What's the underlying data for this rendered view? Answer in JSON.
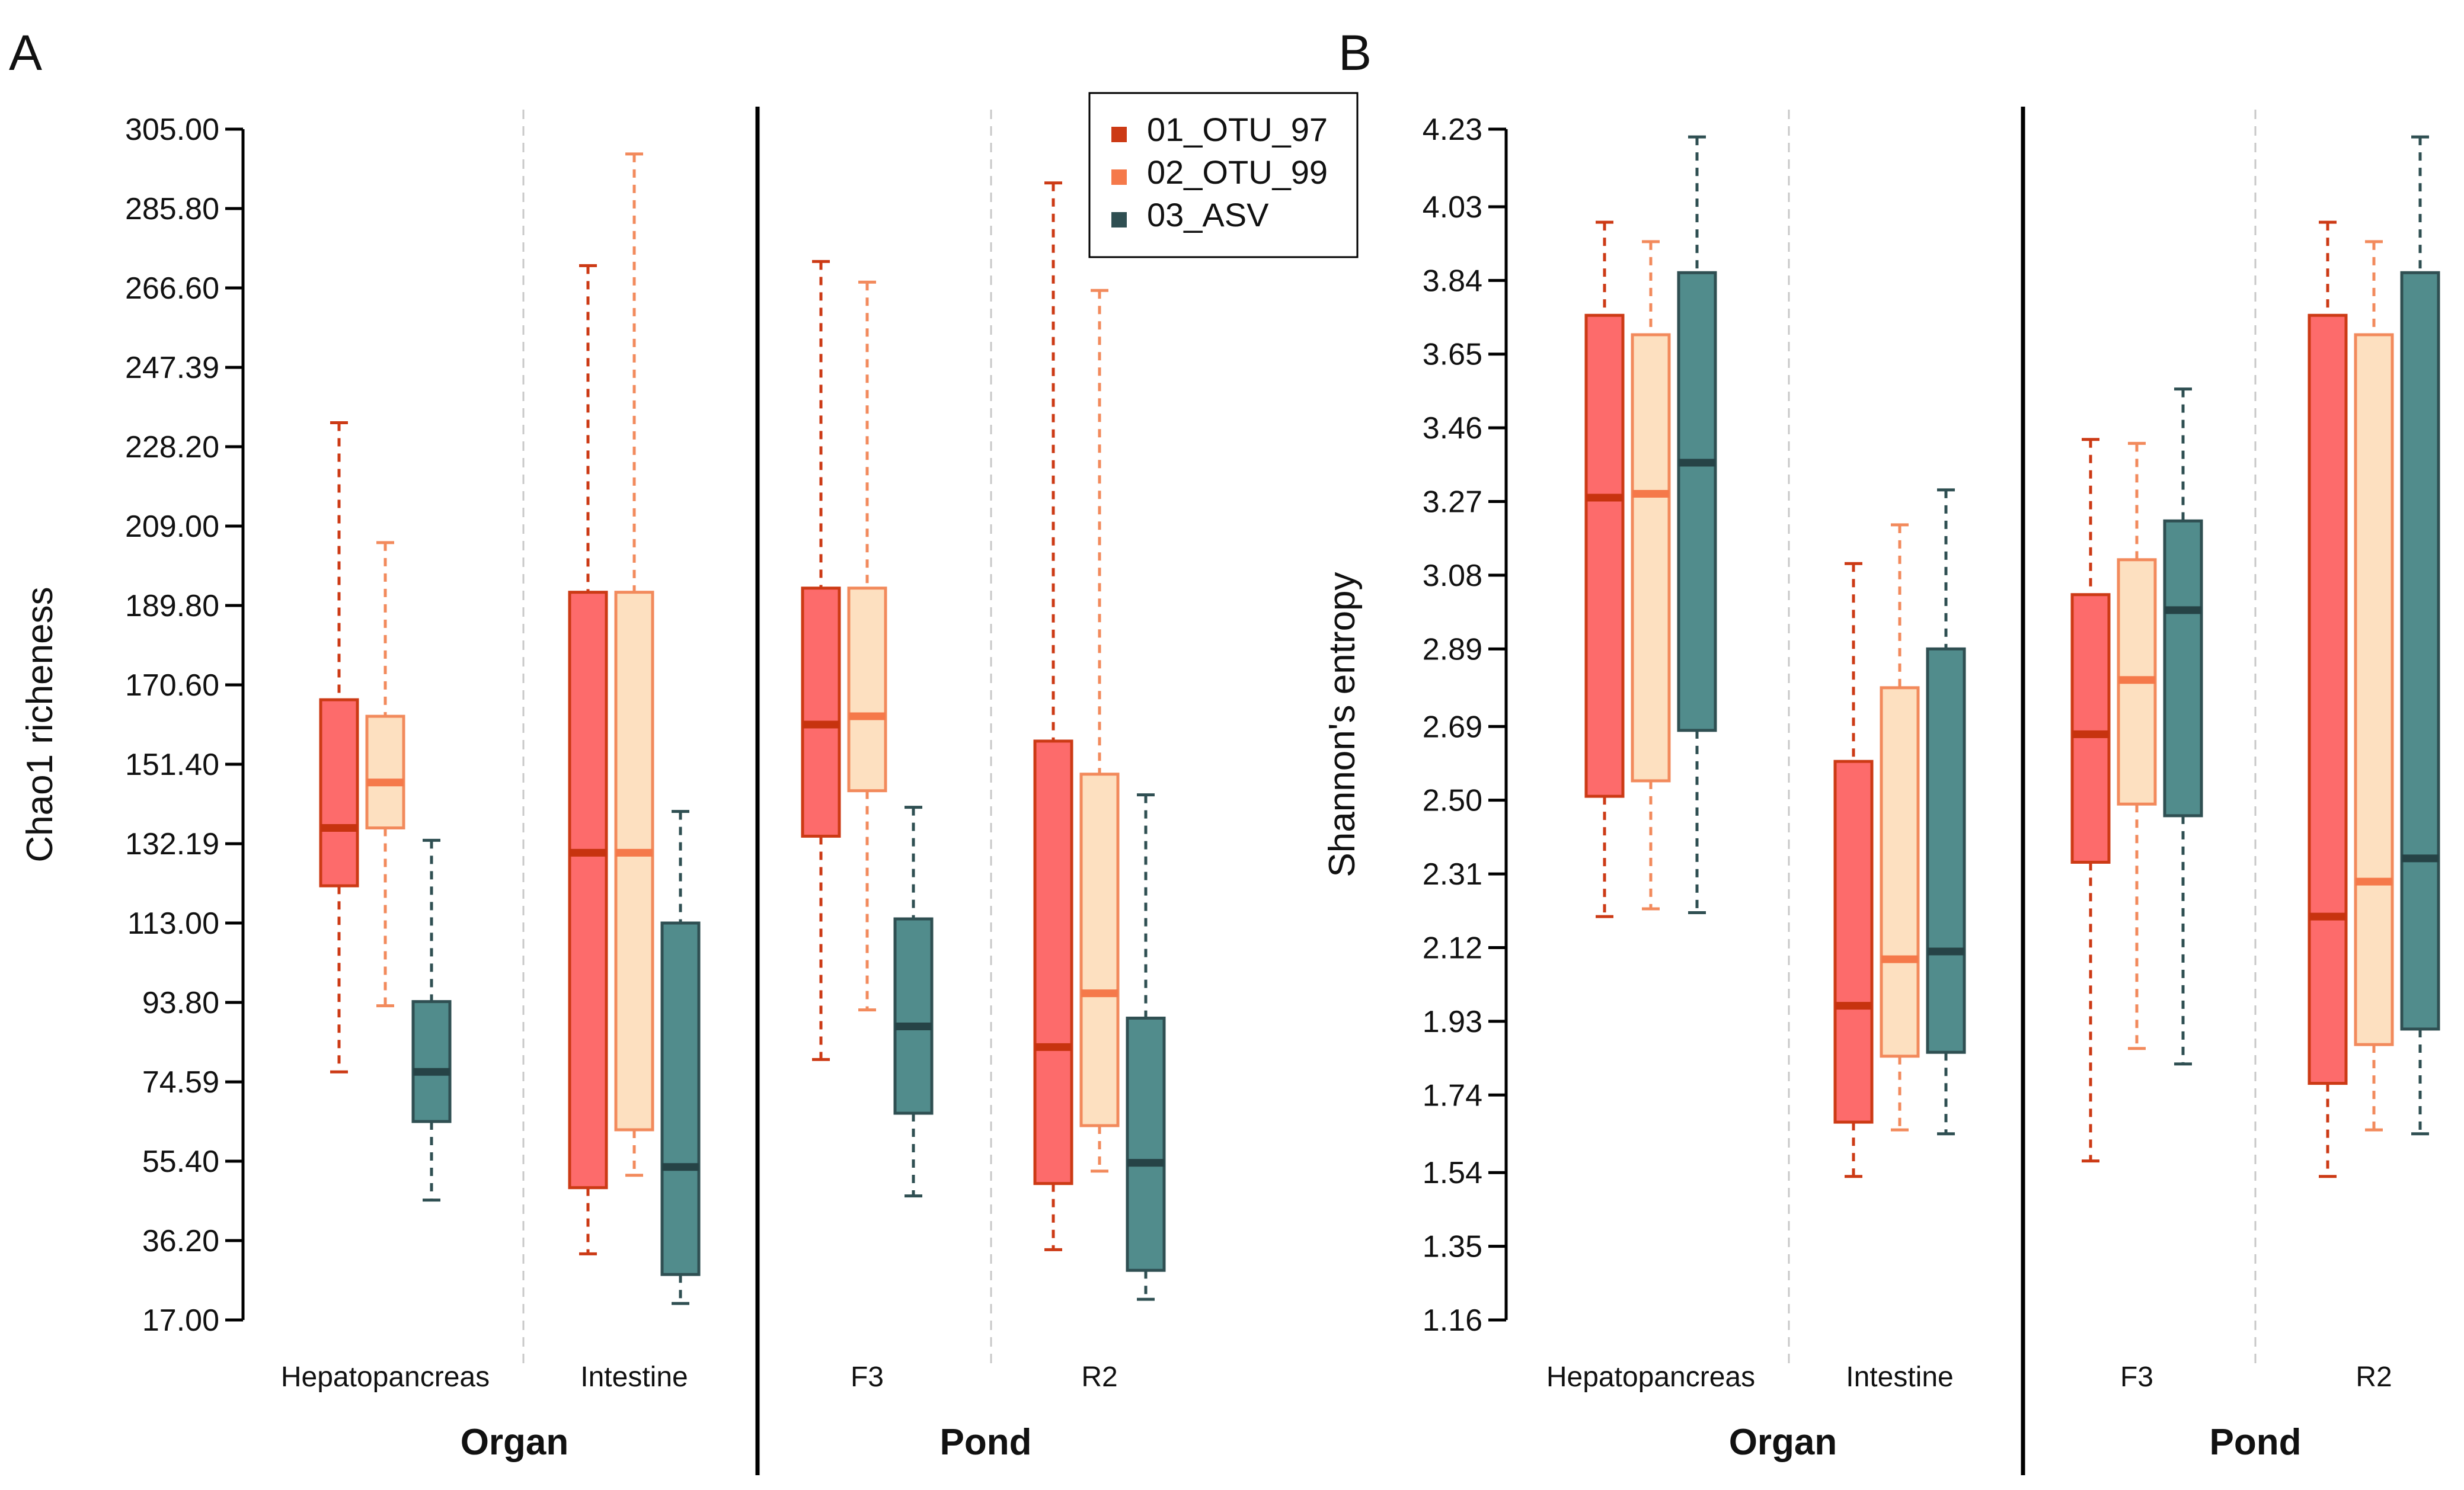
{
  "colors": {
    "otu97_fill": "#fd6b6b",
    "otu97_line": "#cc3a15",
    "otu99_fill": "#fde0c0",
    "otu99_line": "#f28a5c",
    "asv_fill": "#518c8c",
    "asv_line": "#2f4f52",
    "median_otu97": "#c7330f",
    "median_otu99": "#f5794a",
    "median_asv": "#264346"
  },
  "legend": {
    "entries": [
      "01_OTU_97",
      "02_OTU_99",
      "03_ASV"
    ],
    "placement": "top-center of panel A"
  },
  "chart_data": [
    {
      "type": "box",
      "panel_label": "A",
      "ylabel": "Chao1 richeness",
      "ylim": [
        17.0,
        305.0
      ],
      "yticks": [
        "17.00",
        "36.20",
        "55.40",
        "74.59",
        "93.80",
        "113.00",
        "132.19",
        "151.40",
        "170.60",
        "189.80",
        "209.00",
        "228.20",
        "247.39",
        "266.60",
        "285.80",
        "305.00"
      ],
      "groups": [
        {
          "label": "Organ",
          "categories": [
            "Hepatopancreas",
            "Intestine"
          ]
        },
        {
          "label": "Pond",
          "categories": [
            "F3",
            "R2"
          ]
        }
      ],
      "series": [
        {
          "name": "01_OTU_97",
          "boxes": [
            {
              "category": "Hepatopancreas",
              "min": 77,
              "q1": 122,
              "median": 136,
              "q3": 167,
              "max": 234
            },
            {
              "category": "Intestine",
              "min": 33,
              "q1": 49,
              "median": 130,
              "q3": 193,
              "max": 272
            },
            {
              "category": "F3",
              "min": 80,
              "q1": 134,
              "median": 161,
              "q3": 194,
              "max": 273
            },
            {
              "category": "R2",
              "min": 34,
              "q1": 50,
              "median": 83,
              "q3": 157,
              "max": 292
            }
          ]
        },
        {
          "name": "02_OTU_99",
          "boxes": [
            {
              "category": "Hepatopancreas",
              "min": 93,
              "q1": 136,
              "median": 147,
              "q3": 163,
              "max": 205
            },
            {
              "category": "Intestine",
              "min": 52,
              "q1": 63,
              "median": 130,
              "q3": 193,
              "max": 299
            },
            {
              "category": "F3",
              "min": 92,
              "q1": 145,
              "median": 163,
              "q3": 194,
              "max": 268
            },
            {
              "category": "R2",
              "min": 53,
              "q1": 64,
              "median": 96,
              "q3": 149,
              "max": 266
            }
          ]
        },
        {
          "name": "03_ASV",
          "boxes": [
            {
              "category": "Hepatopancreas",
              "min": 46,
              "q1": 65,
              "median": 77,
              "q3": 94,
              "max": 133
            },
            {
              "category": "Intestine",
              "min": 21,
              "q1": 28,
              "median": 54,
              "q3": 113,
              "max": 140
            },
            {
              "category": "F3",
              "min": 47,
              "q1": 67,
              "median": 88,
              "q3": 114,
              "max": 141
            },
            {
              "category": "R2",
              "min": 22,
              "q1": 29,
              "median": 55,
              "q3": 90,
              "max": 144
            }
          ]
        }
      ]
    },
    {
      "type": "box",
      "panel_label": "B",
      "ylabel": "Shannon's entropy",
      "ylim": [
        1.16,
        4.23
      ],
      "yticks": [
        "1.16",
        "1.35",
        "1.54",
        "1.74",
        "1.93",
        "2.12",
        "2.31",
        "2.50",
        "2.69",
        "2.89",
        "3.08",
        "3.27",
        "3.46",
        "3.65",
        "3.84",
        "4.03",
        "4.23"
      ],
      "groups": [
        {
          "label": "Organ",
          "categories": [
            "Hepatopancreas",
            "Intestine"
          ]
        },
        {
          "label": "Pond",
          "categories": [
            "F3",
            "R2"
          ]
        }
      ],
      "series": [
        {
          "name": "01_OTU_97",
          "boxes": [
            {
              "category": "Hepatopancreas",
              "min": 2.2,
              "q1": 2.51,
              "median": 3.28,
              "q3": 3.75,
              "max": 3.99
            },
            {
              "category": "Intestine",
              "min": 1.53,
              "q1": 1.67,
              "median": 1.97,
              "q3": 2.6,
              "max": 3.11
            },
            {
              "category": "F3",
              "min": 1.57,
              "q1": 2.34,
              "median": 2.67,
              "q3": 3.03,
              "max": 3.43
            },
            {
              "category": "R2",
              "min": 1.53,
              "q1": 1.77,
              "median": 2.2,
              "q3": 3.75,
              "max": 3.99
            }
          ]
        },
        {
          "name": "02_OTU_99",
          "boxes": [
            {
              "category": "Hepatopancreas",
              "min": 2.22,
              "q1": 2.55,
              "median": 3.29,
              "q3": 3.7,
              "max": 3.94
            },
            {
              "category": "Intestine",
              "min": 1.65,
              "q1": 1.84,
              "median": 2.09,
              "q3": 2.79,
              "max": 3.21
            },
            {
              "category": "F3",
              "min": 1.86,
              "q1": 2.49,
              "median": 2.81,
              "q3": 3.12,
              "max": 3.42
            },
            {
              "category": "R2",
              "min": 1.65,
              "q1": 1.87,
              "median": 2.29,
              "q3": 3.7,
              "max": 3.94
            }
          ]
        },
        {
          "name": "03_ASV",
          "boxes": [
            {
              "category": "Hepatopancreas",
              "min": 2.21,
              "q1": 2.68,
              "median": 3.37,
              "q3": 3.86,
              "max": 4.21
            },
            {
              "category": "Intestine",
              "min": 1.64,
              "q1": 1.85,
              "median": 2.11,
              "q3": 2.89,
              "max": 3.3
            },
            {
              "category": "F3",
              "min": 1.82,
              "q1": 2.46,
              "median": 2.99,
              "q3": 3.22,
              "max": 3.56
            },
            {
              "category": "R2",
              "min": 1.64,
              "q1": 1.91,
              "median": 2.35,
              "q3": 3.86,
              "max": 4.21
            }
          ]
        }
      ]
    }
  ]
}
